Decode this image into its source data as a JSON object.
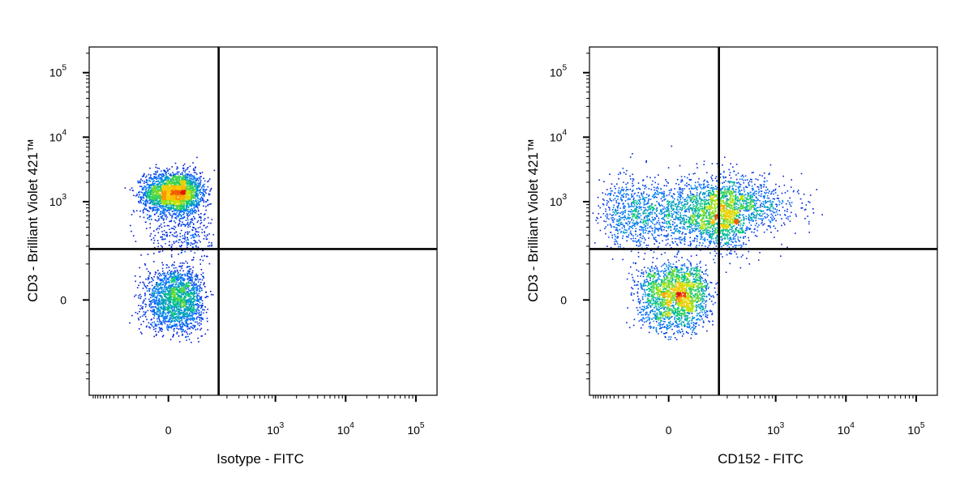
{
  "chart_data": [
    {
      "type": "scatter",
      "plot_style": "flow cytometry pseudocolor dot plot (density colored blue → green → yellow → red)",
      "xlabel": "Isotype - FITC",
      "ylabel": "CD3 - Brilliant Violet 421™",
      "x_scale": "biexponential",
      "y_scale": "biexponential",
      "x_tick_labels": [
        "0",
        "10^3",
        "10^4",
        "10^5"
      ],
      "y_tick_labels": [
        "0",
        "10^3",
        "10^4",
        "10^5"
      ],
      "x_tick_values": [
        0,
        1000,
        10000,
        100000
      ],
      "y_tick_values": [
        0,
        1000,
        10000,
        100000
      ],
      "quadrant_gate": {
        "x": 150,
        "y": 180
      },
      "populations": [
        {
          "center_x": 10,
          "center_y": 1400,
          "spread_x": 32,
          "spread_y": 0.16,
          "relative_count": 1.0
        },
        {
          "center_x": 15,
          "center_y": 0,
          "spread_x": 32,
          "spread_y": 36,
          "relative_count": 0.75
        },
        {
          "center_x": 30,
          "center_y": 350,
          "spread_x": 40,
          "spread_y": 0.3,
          "relative_count": 0.15
        }
      ]
    },
    {
      "type": "scatter",
      "plot_style": "flow cytometry pseudocolor dot plot (density colored blue → green → yellow → red)",
      "xlabel": "CD152 - FITC",
      "ylabel": "CD3 - Brilliant Violet 421™",
      "x_scale": "biexponential",
      "y_scale": "biexponential",
      "x_tick_labels": [
        "0",
        "10^3",
        "10^4",
        "10^5"
      ],
      "y_tick_labels": [
        "0",
        "10^3",
        "10^4",
        "10^5"
      ],
      "x_tick_values": [
        0,
        1000,
        10000,
        100000
      ],
      "y_tick_values": [
        0,
        1000,
        10000,
        100000
      ],
      "quadrant_gate": {
        "x": 150,
        "y": 180
      },
      "populations": [
        {
          "center_x": 60,
          "center_y": 650,
          "spread_x": 130,
          "spread_y": 0.28,
          "relative_count": 1.0
        },
        {
          "center_x": 15,
          "center_y": 10,
          "spread_x": 40,
          "spread_y": 40,
          "relative_count": 0.8
        },
        {
          "center_x": 400,
          "center_y": 900,
          "spread_x": 0.35,
          "spread_y": 0.22,
          "relative_count": 0.3
        }
      ]
    }
  ],
  "colors": {
    "density_low": "#0000cc",
    "density_mid": "#00cc66",
    "density_high1": "#ffff00",
    "density_high2": "#ff0000",
    "axes": "#000000",
    "gate": "#000000"
  }
}
